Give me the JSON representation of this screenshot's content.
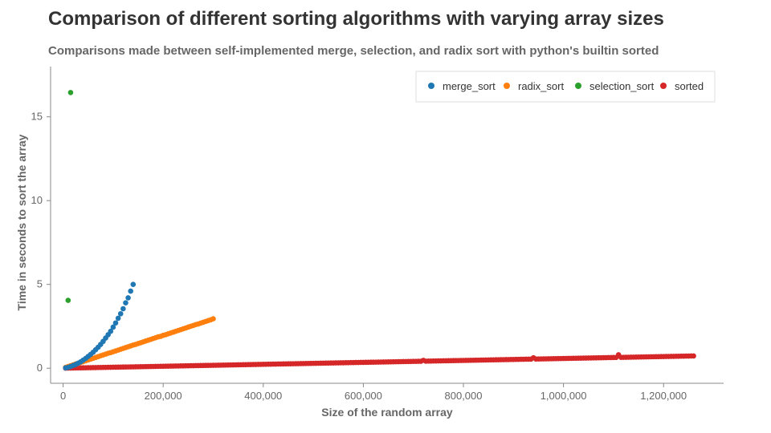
{
  "chart_data": {
    "type": "scatter",
    "title": "Comparison of different sorting algorithms with varying array sizes",
    "subtitle": "Comparisons made between self-implemented merge, selection, and radix sort with python's builtin sorted",
    "xlabel": "Size of the random array",
    "ylabel": "Time in seconds to sort the array",
    "xlim": [
      -25000,
      1320000
    ],
    "ylim": [
      -0.9,
      18.0
    ],
    "xticks": [
      0,
      200000,
      400000,
      600000,
      800000,
      1000000,
      1200000
    ],
    "xtick_labels": [
      "0",
      "200,000",
      "400,000",
      "600,000",
      "800,000",
      "1,000,000",
      "1,200,000"
    ],
    "yticks": [
      0,
      5,
      10,
      15
    ],
    "ytick_labels": [
      "0",
      "5",
      "10",
      "15"
    ],
    "grid": false,
    "legend_position": "top-right",
    "series": [
      {
        "name": "merge_sort",
        "color": "#1f77b4",
        "x": [
          5000,
          10000,
          15000,
          20000,
          25000,
          30000,
          35000,
          40000,
          45000,
          50000,
          55000,
          60000,
          65000,
          70000,
          75000,
          80000,
          85000,
          90000,
          95000,
          100000,
          105000,
          110000,
          115000,
          120000,
          125000,
          130000,
          135000,
          140000
        ],
        "y": [
          0.02,
          0.05,
          0.1,
          0.16,
          0.22,
          0.3,
          0.38,
          0.48,
          0.58,
          0.7,
          0.82,
          0.95,
          1.1,
          1.25,
          1.42,
          1.6,
          1.8,
          2.0,
          2.2,
          2.45,
          2.7,
          2.98,
          3.25,
          3.55,
          3.9,
          4.2,
          4.6,
          5.0
        ]
      },
      {
        "name": "radix_sort",
        "color": "#ff7f0e",
        "x": [
          5000,
          10000,
          15000,
          20000,
          25000,
          30000,
          35000,
          40000,
          45000,
          50000,
          55000,
          60000,
          65000,
          70000,
          75000,
          80000,
          85000,
          90000,
          95000,
          100000,
          105000,
          110000,
          115000,
          120000,
          125000,
          130000,
          135000,
          140000,
          145000,
          150000,
          155000,
          160000,
          165000,
          170000,
          175000,
          180000,
          185000,
          190000,
          195000,
          200000,
          205000,
          210000,
          215000,
          220000,
          225000,
          230000,
          235000,
          240000,
          245000,
          250000,
          255000,
          260000,
          265000,
          270000,
          275000,
          280000,
          285000,
          290000,
          295000,
          300000
        ],
        "y": [
          0.05,
          0.1,
          0.15,
          0.2,
          0.25,
          0.29,
          0.34,
          0.39,
          0.44,
          0.49,
          0.54,
          0.59,
          0.64,
          0.69,
          0.74,
          0.79,
          0.84,
          0.89,
          0.93,
          0.98,
          1.03,
          1.08,
          1.13,
          1.18,
          1.23,
          1.28,
          1.33,
          1.38,
          1.42,
          1.47,
          1.52,
          1.57,
          1.62,
          1.67,
          1.72,
          1.77,
          1.82,
          1.87,
          1.9,
          1.96,
          2.0,
          2.05,
          2.1,
          2.15,
          2.2,
          2.25,
          2.3,
          2.35,
          2.4,
          2.45,
          2.5,
          2.55,
          2.6,
          2.64,
          2.69,
          2.74,
          2.79,
          2.84,
          2.89,
          2.95
        ]
      },
      {
        "name": "selection_sort",
        "color": "#2ca02c",
        "x": [
          10000,
          15000
        ],
        "y": [
          4.05,
          16.45
        ]
      },
      {
        "name": "sorted",
        "color": "#d62728",
        "x_start": 5000,
        "x_step": 5000,
        "x_end": 1260000,
        "y_slope_per_million": 0.58,
        "y_outliers": [
          {
            "x": 1110000,
            "y": 0.8
          },
          {
            "x": 940000,
            "y": 0.62
          },
          {
            "x": 720000,
            "y": 0.47
          }
        ]
      }
    ]
  }
}
